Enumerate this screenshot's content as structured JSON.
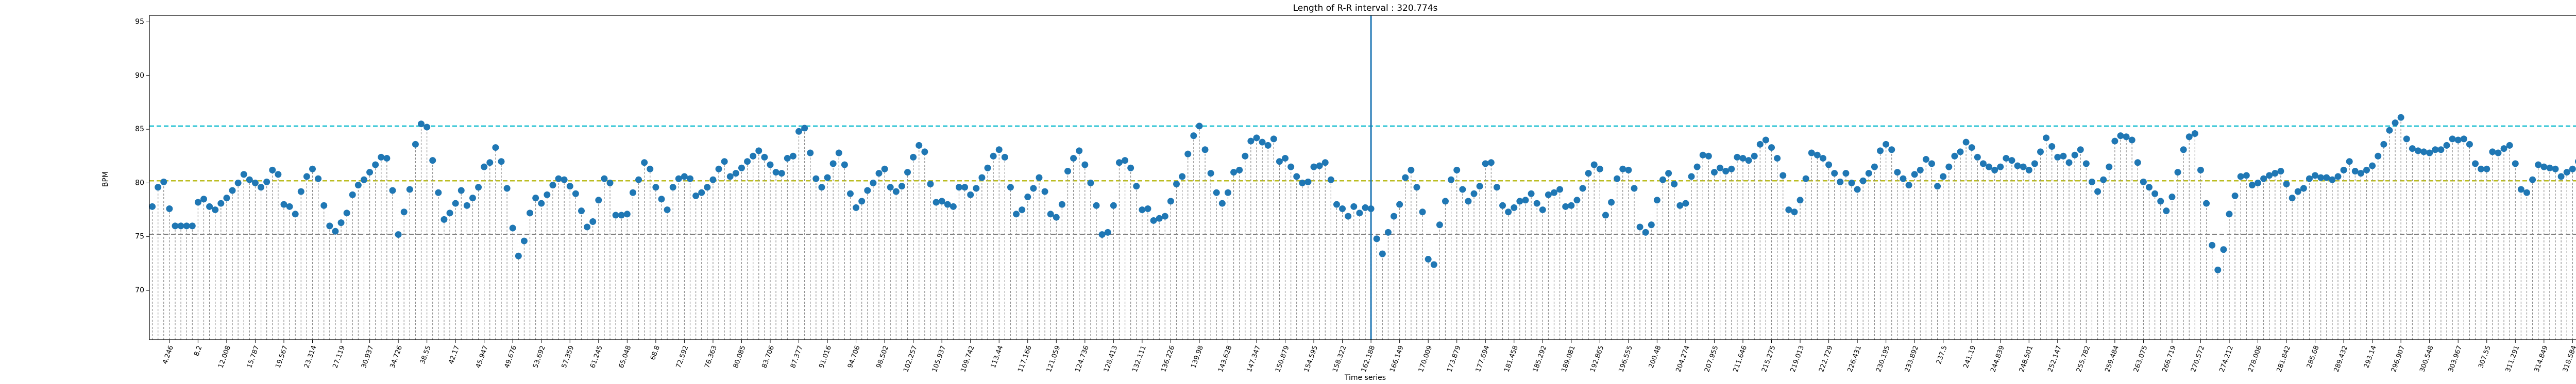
{
  "chart_data": {
    "type": "stem",
    "title": "Length of R-R interval : 320.774s",
    "x_label": "Time series",
    "y_label": "BPM",
    "ylim": [
      65.4,
      95.6
    ],
    "yticks": [
      70,
      75,
      80,
      85,
      90,
      95
    ],
    "color": "#1f77b4",
    "stem_color": "#8c8c8c",
    "hlines": [
      {
        "value": 85.3,
        "color": "#17becf"
      },
      {
        "value": 80.2,
        "color": "#bcbd22"
      },
      {
        "value": 75.2,
        "color": "#7f7f7f"
      }
    ],
    "vline_index": 213,
    "vline_color": "#1f77b4",
    "categories": [
      null,
      null,
      null,
      "4.246",
      null,
      null,
      null,
      null,
      "8.2",
      null,
      null,
      null,
      null,
      "12.008",
      null,
      null,
      null,
      null,
      "15.787",
      null,
      null,
      null,
      null,
      "19.567",
      null,
      null,
      null,
      null,
      "23.314",
      null,
      null,
      null,
      null,
      "27.119",
      null,
      null,
      null,
      null,
      "30.937",
      null,
      null,
      null,
      null,
      "34.726",
      null,
      null,
      null,
      null,
      "38.55",
      null,
      null,
      null,
      null,
      "42.17",
      null,
      null,
      null,
      null,
      "45.947",
      null,
      null,
      null,
      null,
      "49.676",
      null,
      null,
      null,
      null,
      "53.692",
      null,
      null,
      null,
      null,
      "57.359",
      null,
      null,
      null,
      null,
      "61.245",
      null,
      null,
      null,
      null,
      "65.048",
      null,
      null,
      null,
      null,
      "68.8",
      null,
      null,
      null,
      null,
      "72.592",
      null,
      null,
      null,
      null,
      "76.363",
      null,
      null,
      null,
      null,
      "80.085",
      null,
      null,
      null,
      null,
      "83.706",
      null,
      null,
      null,
      null,
      "87.377",
      null,
      null,
      null,
      null,
      "91.016",
      null,
      null,
      null,
      null,
      "94.706",
      null,
      null,
      null,
      null,
      "98.502",
      null,
      null,
      null,
      null,
      "102.257",
      null,
      null,
      null,
      null,
      "105.937",
      null,
      null,
      null,
      null,
      "109.742",
      null,
      null,
      null,
      null,
      "113.44",
      null,
      null,
      null,
      null,
      "117.166",
      null,
      null,
      null,
      null,
      "121.059",
      null,
      null,
      null,
      null,
      "124.736",
      null,
      null,
      null,
      null,
      "128.413",
      null,
      null,
      null,
      null,
      "132.111",
      null,
      null,
      null,
      null,
      "136.226",
      null,
      null,
      null,
      null,
      "139.98",
      null,
      null,
      null,
      null,
      "143.628",
      null,
      null,
      null,
      null,
      "147.347",
      null,
      null,
      null,
      null,
      "150.879",
      null,
      null,
      null,
      null,
      "154.595",
      null,
      null,
      null,
      null,
      "158.322",
      null,
      null,
      null,
      null,
      "162.188",
      null,
      null,
      null,
      null,
      "166.149",
      null,
      null,
      null,
      null,
      "170.009",
      null,
      null,
      null,
      null,
      "173.879",
      null,
      null,
      null,
      null,
      "177.694",
      null,
      null,
      null,
      null,
      "181.458",
      null,
      null,
      null,
      null,
      "185.292",
      null,
      null,
      null,
      null,
      "189.081",
      null,
      null,
      null,
      null,
      "192.865",
      null,
      null,
      null,
      null,
      "196.555",
      null,
      null,
      null,
      null,
      "200.48",
      null,
      null,
      null,
      null,
      "204.274",
      null,
      null,
      null,
      null,
      "207.955",
      null,
      null,
      null,
      null,
      "211.646",
      null,
      null,
      null,
      null,
      "215.275",
      null,
      null,
      null,
      null,
      "219.013",
      null,
      null,
      null,
      null,
      "222.729",
      null,
      null,
      null,
      null,
      "226.431",
      null,
      null,
      null,
      null,
      "230.195",
      null,
      null,
      null,
      null,
      "233.892",
      null,
      null,
      null,
      null,
      "237.5",
      null,
      null,
      null,
      null,
      "241.19",
      null,
      null,
      null,
      null,
      "244.839",
      null,
      null,
      null,
      null,
      "248.501",
      null,
      null,
      null,
      null,
      "252.147",
      null,
      null,
      null,
      null,
      "255.782",
      null,
      null,
      null,
      null,
      "259.484",
      null,
      null,
      null,
      null,
      "263.075",
      null,
      null,
      null,
      null,
      "266.719",
      null,
      null,
      null,
      null,
      "270.572",
      null,
      null,
      null,
      null,
      "274.212",
      null,
      null,
      null,
      null,
      "278.006",
      null,
      null,
      null,
      null,
      "281.842",
      null,
      null,
      null,
      null,
      "285.68",
      null,
      null,
      null,
      null,
      "289.432",
      null,
      null,
      null,
      null,
      "293.14",
      null,
      null,
      null,
      null,
      "296.907",
      null,
      null,
      null,
      null,
      "300.548",
      null,
      null,
      null,
      null,
      "303.967",
      null,
      null,
      null,
      null,
      "307.55",
      null,
      null,
      null,
      null,
      "311.291",
      null,
      null,
      null,
      null,
      "314.849",
      null,
      null,
      null,
      null,
      "318.584",
      null
    ],
    "values": [
      77.8,
      79.6,
      80.1,
      77.6,
      76,
      76,
      76,
      76,
      78.2,
      78.5,
      77.8,
      77.5,
      78.1,
      78.6,
      79.3,
      80.0,
      80.8,
      80.3,
      80.0,
      79.6,
      80.1,
      81.2,
      80.8,
      78.0,
      77.8,
      77.1,
      79.2,
      80.6,
      81.3,
      80.4,
      77.9,
      76.0,
      75.5,
      76.3,
      77.2,
      78.9,
      79.8,
      80.3,
      81.0,
      81.7,
      82.4,
      82.3,
      79.3,
      75.2,
      77.3,
      79.4,
      83.6,
      85.5,
      85.2,
      82.1,
      79.1,
      76.6,
      77.2,
      78.1,
      79.3,
      77.9,
      78.6,
      79.6,
      81.5,
      81.9,
      83.3,
      82.0,
      79.5,
      75.8,
      73.2,
      74.6,
      77.2,
      78.6,
      78.1,
      78.9,
      79.8,
      80.4,
      80.3,
      79.7,
      79.0,
      77.4,
      75.9,
      76.4,
      78.4,
      80.4,
      80.0,
      77.0,
      77.0,
      77.1,
      79.1,
      80.3,
      81.9,
      81.3,
      79.6,
      78.5,
      77.5,
      79.6,
      80.4,
      80.6,
      80.4,
      78.8,
      79.1,
      79.6,
      80.3,
      81.3,
      82.0,
      80.6,
      80.9,
      81.4,
      82.0,
      82.5,
      83.0,
      82.4,
      81.7,
      81.0,
      80.9,
      82.3,
      82.5,
      84.8,
      85.1,
      82.8,
      80.4,
      79.6,
      80.5,
      81.8,
      82.8,
      81.7,
      79.0,
      77.7,
      78.3,
      79.3,
      80.0,
      80.9,
      81.3,
      79.6,
      79.2,
      79.7,
      81.0,
      82.4,
      83.5,
      82.9,
      79.9,
      78.2,
      78.3,
      78.0,
      77.8,
      79.6,
      79.6,
      78.9,
      79.5,
      80.5,
      81.4,
      82.5,
      83.1,
      82.4,
      79.6,
      77.1,
      77.5,
      78.7,
      79.5,
      80.5,
      79.2,
      77.1,
      76.8,
      78.0,
      81.1,
      82.3,
      83.0,
      81.7,
      80.0,
      77.9,
      75.2,
      75.4,
      77.9,
      81.9,
      82.1,
      81.4,
      79.7,
      77.5,
      77.6,
      76.5,
      76.7,
      76.9,
      78.3,
      79.9,
      80.6,
      82.7,
      84.4,
      85.3,
      83.1,
      80.9,
      79.1,
      78.1,
      79.1,
      81.0,
      81.2,
      82.5,
      83.9,
      84.2,
      83.8,
      83.5,
      84.1,
      82.0,
      82.3,
      81.5,
      80.6,
      80.0,
      80.1,
      81.5,
      81.6,
      81.9,
      80.3,
      78.0,
      77.6,
      76.9,
      77.8,
      77.2,
      77.7,
      77.6,
      74.8,
      73.4,
      75.4,
      76.9,
      78.0,
      80.5,
      81.2,
      79.6,
      77.3,
      72.9,
      72.4,
      76.1,
      78.3,
      80.3,
      81.2,
      79.4,
      78.3,
      79.0,
      79.7,
      81.8,
      81.9,
      79.6,
      77.9,
      77.3,
      77.7,
      78.3,
      78.4,
      79.0,
      78.1,
      77.5,
      78.9,
      79.1,
      79.4,
      77.8,
      77.9,
      78.4,
      79.5,
      80.9,
      81.7,
      81.3,
      77.0,
      78.2,
      80.4,
      81.3,
      81.2,
      79.5,
      75.9,
      75.4,
      76.1,
      78.4,
      80.3,
      80.9,
      79.9,
      77.9,
      78.1,
      80.6,
      81.5,
      82.6,
      82.5,
      81.0,
      81.4,
      81.1,
      81.3,
      82.4,
      82.3,
      82.1,
      82.5,
      83.6,
      84.0,
      83.3,
      82.3,
      80.7,
      77.5,
      77.3,
      78.4,
      80.4,
      82.8,
      82.6,
      82.3,
      81.7,
      80.9,
      80.1,
      80.9,
      80.0,
      79.4,
      80.2,
      80.9,
      81.5,
      83.0,
      83.6,
      83.1,
      81.0,
      80.4,
      79.8,
      80.8,
      81.2,
      82.2,
      81.8,
      79.7,
      80.6,
      81.5,
      82.5,
      82.9,
      83.8,
      83.3,
      82.4,
      81.8,
      81.5,
      81.2,
      81.5,
      82.3,
      82.1,
      81.6,
      81.5,
      81.2,
      81.8,
      82.9,
      84.2,
      83.4,
      82.4,
      82.5,
      81.9,
      82.6,
      83.1,
      81.8,
      80.1,
      79.2,
      80.3,
      81.5,
      83.9,
      84.4,
      84.3,
      84.0,
      81.9,
      80.1,
      79.6,
      79.0,
      78.3,
      77.4,
      78.7,
      81.0,
      83.1,
      84.3,
      84.6,
      81.2,
      78.1,
      74.2,
      71.9,
      73.8,
      77.1,
      78.8,
      80.6,
      80.7,
      79.8,
      80.0,
      80.4,
      80.7,
      80.9,
      81.1,
      79.9,
      78.6,
      79.2,
      79.5,
      80.4,
      80.7,
      80.5,
      80.5,
      80.3,
      80.6,
      81.2,
      82.0,
      81.1,
      80.9,
      81.2,
      81.6,
      82.5,
      83.6,
      84.9,
      85.6,
      86.1,
      84.1,
      83.2,
      83.0,
      82.9,
      82.8,
      83.1,
      83.1,
      83.5,
      84.1,
      84.0,
      84.1,
      83.6,
      81.8,
      81.3,
      81.3,
      82.9,
      82.8,
      83.2,
      83.5,
      81.8,
      79.4,
      79.1,
      80.3,
      81.7,
      81.5,
      81.4,
      81.3,
      80.6,
      81.0,
      81.3,
      82.0
    ]
  }
}
